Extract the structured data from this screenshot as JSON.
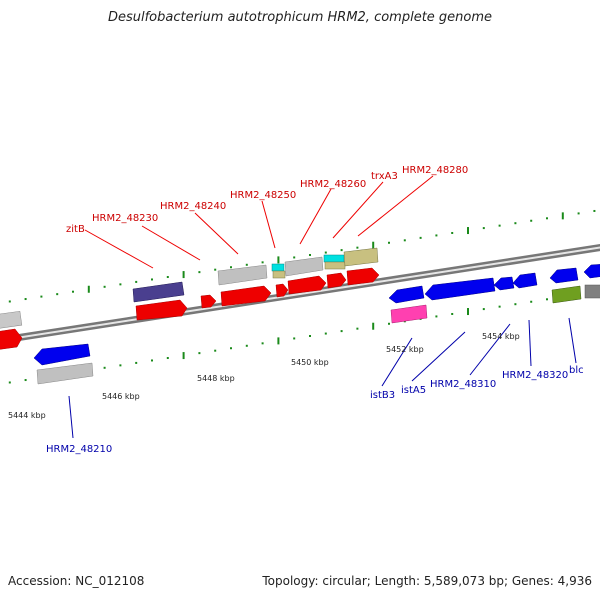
{
  "title": "Desulfobacterium autotrophicum HRM2, complete genome",
  "accession": "Accession: NC_012108",
  "summary": "Topology: circular; Length: 5,589,073 bp; Genes: 4,936",
  "colors": {
    "forward": "#ee0000",
    "reverse": "#0000ee",
    "grey": "#c0c0c0",
    "cyan": "#00e0e0",
    "olive": "#c8c080",
    "purple": "#4a3f8f",
    "pink": "#ff40b0",
    "green": "#6f9f20",
    "tick": "#1a8a1a"
  },
  "scale": {
    "ticks": [
      "5444 kbp",
      "5446 kbp",
      "5448 kbp",
      "5450 kbp",
      "5452 kbp",
      "5454 kbp"
    ]
  },
  "top_labels": [
    "zitB",
    "HRM2_48230",
    "HRM2_48240",
    "HRM2_48250",
    "HRM2_48260",
    "trxA3",
    "HRM2_48280"
  ],
  "bottom_labels": [
    "HRM2_48210",
    "istB3",
    "istA5",
    "HRM2_48310",
    "HRM2_48320",
    "blc"
  ]
}
